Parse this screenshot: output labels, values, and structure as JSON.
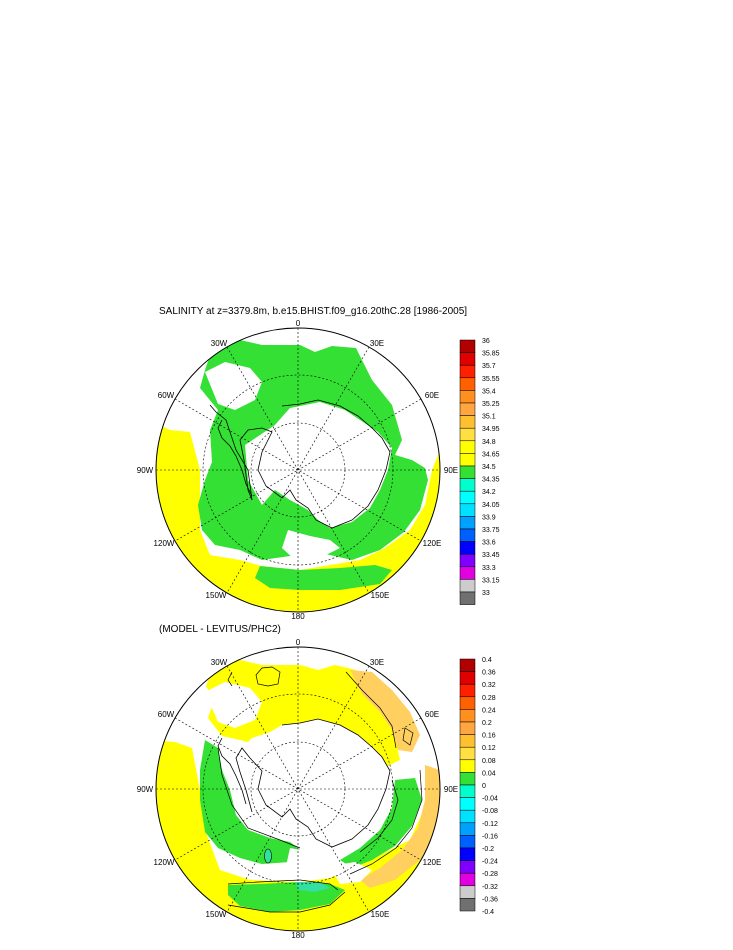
{
  "chart_data": [
    {
      "type": "heatmap",
      "title": "SALINITY at z=3379.8m, b.e15.BHIST.f09_g16.20thC.28 [1986-2005]",
      "projection": "south-polar-stereographic",
      "longitude_labels": [
        "0",
        "30E",
        "60E",
        "90E",
        "120E",
        "150E",
        "180",
        "150W",
        "120W",
        "90W",
        "60W",
        "30W"
      ],
      "colorbar": {
        "levels": [
          "36",
          "35.85",
          "35.7",
          "35.55",
          "35.4",
          "35.25",
          "35.1",
          "34.95",
          "34.8",
          "34.65",
          "34.5",
          "34.35",
          "34.2",
          "34.05",
          "33.9",
          "33.75",
          "33.6",
          "33.45",
          "33.3",
          "33.15",
          "33"
        ],
        "colors": [
          "#b00000",
          "#e00000",
          "#ff2000",
          "#ff6000",
          "#ff9020",
          "#ffa640",
          "#ffc030",
          "#ffe040",
          "#ffff00",
          "#ffff00",
          "#33e033",
          "#00ffcc",
          "#00ffff",
          "#00e0ff",
          "#00a0ff",
          "#0060ff",
          "#0000ff",
          "#8000ff",
          "#e000e0",
          "#cccccc",
          "#707070"
        ]
      },
      "fields": {
        "yellow": "#ffff00",
        "green": "#33e033",
        "land": "#ffffff"
      }
    },
    {
      "type": "heatmap",
      "title": "(MODEL - LEVITUS/PHC2)",
      "projection": "south-polar-stereographic",
      "longitude_labels": [
        "0",
        "30E",
        "60E",
        "90E",
        "120E",
        "150E",
        "180",
        "150W",
        "120W",
        "90W",
        "60W",
        "30W"
      ],
      "colorbar": {
        "levels": [
          "0.4",
          "0.36",
          "0.32",
          "0.28",
          "0.24",
          "0.2",
          "0.16",
          "0.12",
          "0.08",
          "0.04",
          "0",
          "-0.04",
          "-0.08",
          "-0.12",
          "-0.16",
          "-0.2",
          "-0.24",
          "-0.28",
          "-0.32",
          "-0.36",
          "-0.4"
        ],
        "colors": [
          "#b00000",
          "#e00000",
          "#ff2000",
          "#ff6000",
          "#ff9020",
          "#ffa640",
          "#ffc030",
          "#ffe040",
          "#ffff00",
          "#33e033",
          "#00ffcc",
          "#00ffff",
          "#00e0ff",
          "#00a0ff",
          "#0060ff",
          "#0000ff",
          "#8000ff",
          "#e000e0",
          "#cccccc",
          "#707070"
        ]
      },
      "fields": {
        "yellow": "#ffff00",
        "green": "#33e033",
        "orange": "#ffd060",
        "cyan": "#33e0a0",
        "land": "#ffffff"
      }
    }
  ]
}
